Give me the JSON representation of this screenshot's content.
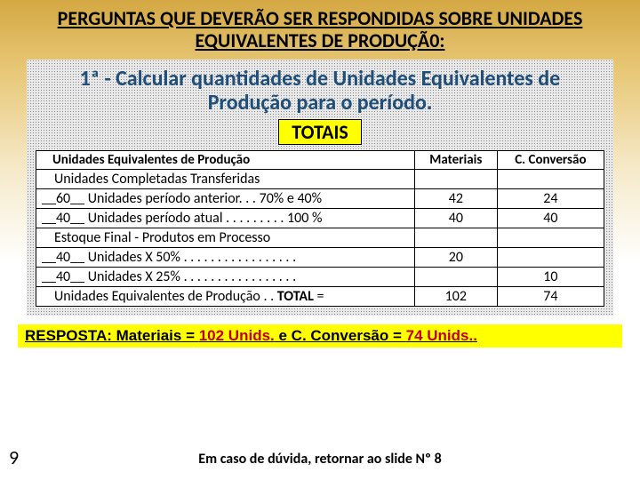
{
  "header": "PERGUNTAS  QUE DEVERÃO SER RESPONDIDAS SOBRE UNIDADES EQUIVALENTES DE PRODUÇÃ0:",
  "subtitle": "1ª - Calcular quantidades de Unidades Equivalentes de Produção para o período.",
  "totais": "TOTAIS",
  "table": {
    "h1": "Unidades Equivalentes de Produção",
    "h2": "Materiais",
    "h3": "C. Conversão",
    "rows": [
      {
        "d": "Unidades Completadas Transferidas",
        "m": "",
        "c": ""
      },
      {
        "pre": "__60__",
        "d": "Unidades período anterior. . .  70% e 40%",
        "m": "42",
        "c": "24"
      },
      {
        "pre": "__40__",
        "d": "Unidades período atual . . . . . . . . . 100 %",
        "m": "40",
        "c": "40"
      },
      {
        "d": "Estoque Final   -   Produtos em Processo",
        "m": "",
        "c": ""
      },
      {
        "pre": "__40__",
        "d": "Unidades X 50%   . . . . . . . . . . . . . . . . .",
        "m": "20",
        "c": ""
      },
      {
        "pre": "__40__",
        "d": "Unidades X 25%   . . . . . . . . . . . . . . . . .",
        "m": "",
        "c": "10"
      },
      {
        "d": "Unidades Equivalentes de Produção . .  TOTAL  =",
        "m": "102",
        "c": "74",
        "bold": true
      }
    ]
  },
  "answer": {
    "l": "RESPOSTA: Materiais = ",
    "r1": "102 Unids.",
    "mid": "   e   C. Conversão = ",
    "r2": "74 Unids.",
    "dot": "."
  },
  "footer": "Em caso de dúvida, retornar ao slide Nº 8",
  "slidenum": "9"
}
